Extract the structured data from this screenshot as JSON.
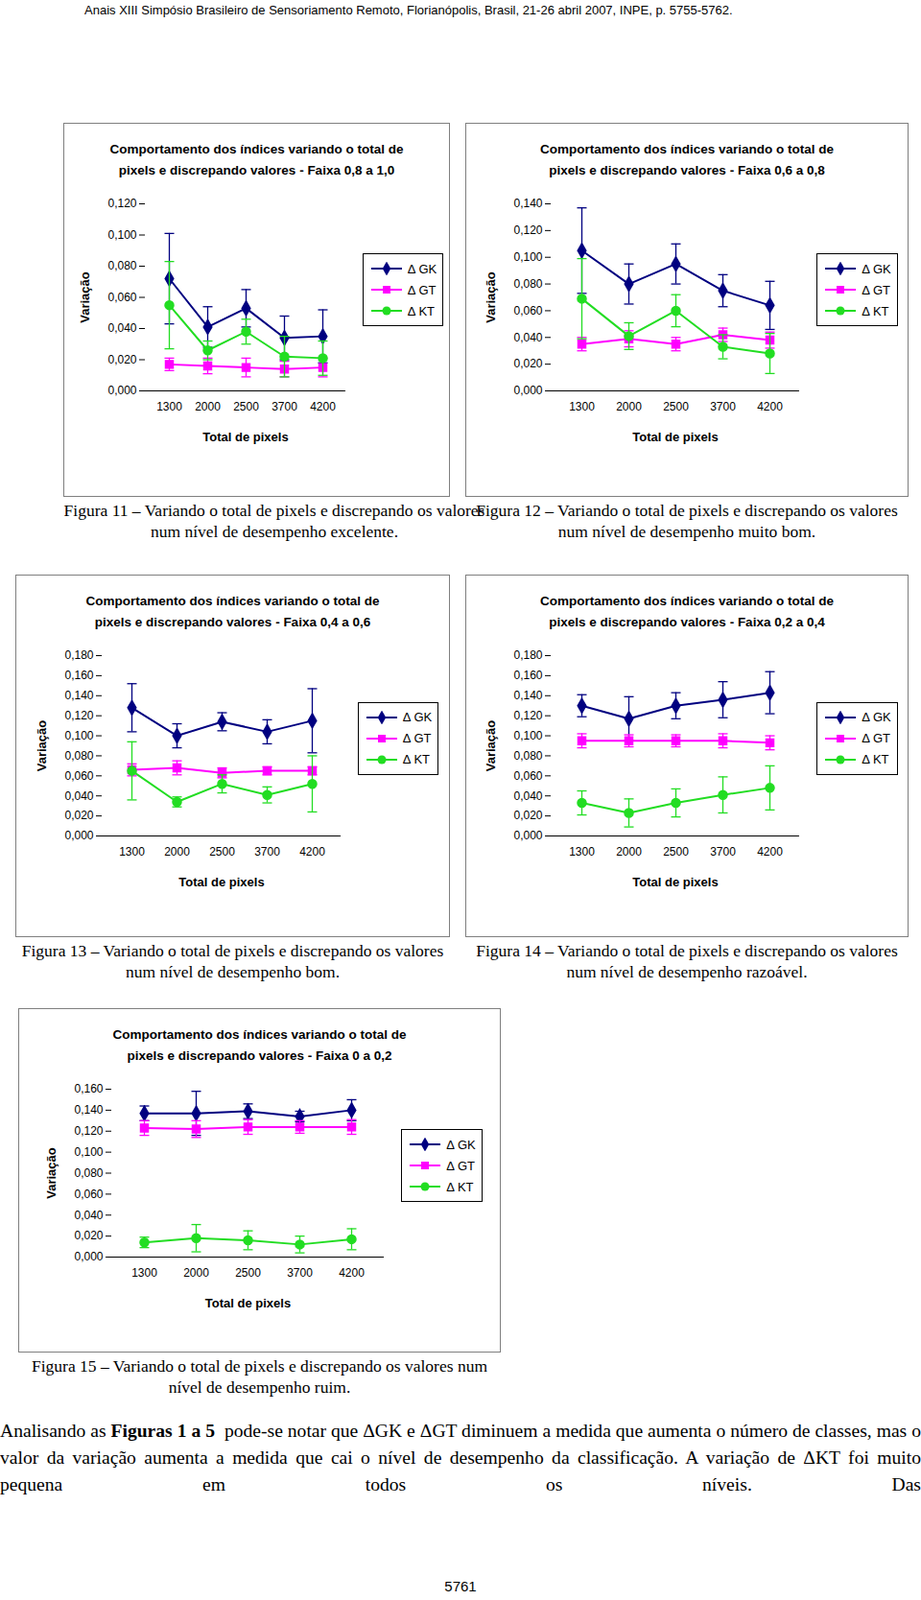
{
  "header": "Anais XIII Simpósio Brasileiro de Sensoriamento Remoto, Florianópolis, Brasil, 21-26 abril 2007, INPE, p. 5755-5762.",
  "chart_data": [
    {
      "type": "line",
      "title": "Comportamento dos índices variando o total de pixels e discrepando valores - Faixa 0,8 a 1,0",
      "caption": "Figura 11 – Variando o total de pixels e discrepando os valores num nível de desempenho excelente.",
      "x_label": "Total de pixels",
      "y_label": "Variação",
      "categories": [
        "1300",
        "2000",
        "2500",
        "3700",
        "4200"
      ],
      "ylim": [
        0,
        0.12
      ],
      "yticks": [
        {
          "value": 0,
          "label": "0,000"
        },
        {
          "value": 0.02,
          "label": "0,020"
        },
        {
          "value": 0.04,
          "label": "0,040"
        },
        {
          "value": 0.06,
          "label": "0,060"
        },
        {
          "value": 0.08,
          "label": "0,080"
        },
        {
          "value": 0.1,
          "label": "0,100"
        },
        {
          "value": 0.12,
          "label": "0,120"
        }
      ],
      "legend": "right",
      "series": [
        {
          "name": "Δ GK",
          "color": "#000080",
          "marker": "diamond",
          "values": [
            0.072,
            0.041,
            0.053,
            0.034,
            0.035
          ],
          "errors": [
            0.029,
            0.013,
            0.012,
            0.014,
            0.017
          ]
        },
        {
          "name": "Δ GT",
          "color": "#ff00ff",
          "marker": "square",
          "values": [
            0.017,
            0.016,
            0.015,
            0.014,
            0.015
          ],
          "errors": [
            0.004,
            0.005,
            0.006,
            0.005,
            0.006
          ]
        },
        {
          "name": "Δ KT",
          "color": "#22dd22",
          "marker": "circle",
          "values": [
            0.055,
            0.026,
            0.038,
            0.022,
            0.021
          ],
          "errors": [
            0.028,
            0.006,
            0.008,
            0.013,
            0.011
          ]
        }
      ]
    },
    {
      "type": "line",
      "title": "Comportamento dos índices variando o total de pixels e discrepando valores - Faixa 0,6 a 0,8",
      "caption": "Figura 12 – Variando o total de pixels e discrepando os valores num nível de desempenho muito bom.",
      "x_label": "Total de pixels",
      "y_label": "Variação",
      "categories": [
        "1300",
        "2000",
        "2500",
        "3700",
        "4200"
      ],
      "ylim": [
        0,
        0.14
      ],
      "yticks": [
        {
          "value": 0,
          "label": "0,000"
        },
        {
          "value": 0.02,
          "label": "0,020"
        },
        {
          "value": 0.04,
          "label": "0,040"
        },
        {
          "value": 0.06,
          "label": "0,060"
        },
        {
          "value": 0.08,
          "label": "0,080"
        },
        {
          "value": 0.1,
          "label": "0,100"
        },
        {
          "value": 0.12,
          "label": "0,120"
        },
        {
          "value": 0.14,
          "label": "0,140"
        }
      ],
      "legend": "right",
      "series": [
        {
          "name": "Δ GK",
          "color": "#000080",
          "marker": "diamond",
          "values": [
            0.105,
            0.08,
            0.095,
            0.075,
            0.064
          ],
          "errors": [
            0.032,
            0.015,
            0.015,
            0.012,
            0.018
          ]
        },
        {
          "name": "Δ GT",
          "color": "#ff00ff",
          "marker": "square",
          "values": [
            0.035,
            0.039,
            0.035,
            0.042,
            0.038
          ],
          "errors": [
            0.005,
            0.006,
            0.005,
            0.005,
            0.006
          ]
        },
        {
          "name": "Δ KT",
          "color": "#22dd22",
          "marker": "circle",
          "values": [
            0.069,
            0.041,
            0.06,
            0.033,
            0.028
          ],
          "errors": [
            0.03,
            0.01,
            0.012,
            0.009,
            0.015
          ]
        }
      ]
    },
    {
      "type": "line",
      "title": "Comportamento dos índices variando o total de pixels e discrepando valores - Faixa 0,4 a 0,6",
      "caption": "Figura 13 – Variando o total de pixels e discrepando os valores num nível de desempenho bom.",
      "x_label": "Total de pixels",
      "y_label": "Variação",
      "categories": [
        "1300",
        "2000",
        "2500",
        "3700",
        "4200"
      ],
      "ylim": [
        0,
        0.18
      ],
      "yticks": [
        {
          "value": 0,
          "label": "0,000"
        },
        {
          "value": 0.02,
          "label": "0,020"
        },
        {
          "value": 0.04,
          "label": "0,040"
        },
        {
          "value": 0.06,
          "label": "0,060"
        },
        {
          "value": 0.08,
          "label": "0,080"
        },
        {
          "value": 0.1,
          "label": "0,100"
        },
        {
          "value": 0.12,
          "label": "0,120"
        },
        {
          "value": 0.14,
          "label": "0,140"
        },
        {
          "value": 0.16,
          "label": "0,160"
        },
        {
          "value": 0.18,
          "label": "0,180"
        }
      ],
      "legend": "right",
      "series": [
        {
          "name": "Δ GK",
          "color": "#000080",
          "marker": "diamond",
          "values": [
            0.128,
            0.1,
            0.114,
            0.104,
            0.115
          ],
          "errors": [
            0.024,
            0.012,
            0.009,
            0.012,
            0.032
          ]
        },
        {
          "name": "Δ GT",
          "color": "#ff00ff",
          "marker": "square",
          "values": [
            0.066,
            0.068,
            0.063,
            0.065,
            0.065
          ],
          "errors": [
            0.006,
            0.007,
            0.005,
            0.004,
            0.004
          ]
        },
        {
          "name": "Δ KT",
          "color": "#22dd22",
          "marker": "circle",
          "values": [
            0.065,
            0.034,
            0.052,
            0.041,
            0.052
          ],
          "errors": [
            0.029,
            0.005,
            0.009,
            0.008,
            0.028
          ]
        }
      ]
    },
    {
      "type": "line",
      "title": "Comportamento dos índices variando o total de pixels e discrepando valores - Faixa 0,2 a 0,4",
      "caption": "Figura 14 – Variando o total de pixels e discrepando os valores num nível de desempenho razoável.",
      "x_label": "Total de pixels",
      "y_label": "Variação",
      "categories": [
        "1300",
        "2000",
        "2500",
        "3700",
        "4200"
      ],
      "ylim": [
        0,
        0.18
      ],
      "yticks": [
        {
          "value": 0,
          "label": "0,000"
        },
        {
          "value": 0.02,
          "label": "0,020"
        },
        {
          "value": 0.04,
          "label": "0,040"
        },
        {
          "value": 0.06,
          "label": "0,060"
        },
        {
          "value": 0.08,
          "label": "0,080"
        },
        {
          "value": 0.1,
          "label": "0,100"
        },
        {
          "value": 0.12,
          "label": "0,120"
        },
        {
          "value": 0.14,
          "label": "0,140"
        },
        {
          "value": 0.16,
          "label": "0,160"
        },
        {
          "value": 0.18,
          "label": "0,180"
        }
      ],
      "legend": "right",
      "series": [
        {
          "name": "Δ GK",
          "color": "#000080",
          "marker": "diamond",
          "values": [
            0.13,
            0.117,
            0.13,
            0.136,
            0.143
          ],
          "errors": [
            0.011,
            0.022,
            0.013,
            0.018,
            0.021
          ]
        },
        {
          "name": "Δ GT",
          "color": "#ff00ff",
          "marker": "square",
          "values": [
            0.095,
            0.095,
            0.095,
            0.095,
            0.093
          ],
          "errors": [
            0.007,
            0.006,
            0.006,
            0.007,
            0.007
          ]
        },
        {
          "name": "Δ KT",
          "color": "#22dd22",
          "marker": "circle",
          "values": [
            0.033,
            0.023,
            0.033,
            0.041,
            0.048
          ],
          "errors": [
            0.012,
            0.014,
            0.014,
            0.018,
            0.022
          ]
        }
      ]
    },
    {
      "type": "line",
      "title": "Comportamento dos índices variando o total de pixels e discrepando valores - Faixa 0 a 0,2",
      "caption": "Figura 15 – Variando o total de pixels e discrepando os valores num nível de desempenho ruim.",
      "x_label": "Total de pixels",
      "y_label": "Variação",
      "categories": [
        "1300",
        "2000",
        "2500",
        "3700",
        "4200"
      ],
      "ylim": [
        0,
        0.16
      ],
      "yticks": [
        {
          "value": 0,
          "label": "0,000"
        },
        {
          "value": 0.02,
          "label": "0,020"
        },
        {
          "value": 0.04,
          "label": "0,040"
        },
        {
          "value": 0.06,
          "label": "0,060"
        },
        {
          "value": 0.08,
          "label": "0,080"
        },
        {
          "value": 0.1,
          "label": "0,100"
        },
        {
          "value": 0.12,
          "label": "0,120"
        },
        {
          "value": 0.14,
          "label": "0,140"
        },
        {
          "value": 0.16,
          "label": "0,160"
        }
      ],
      "legend": "right",
      "series": [
        {
          "name": "Δ GK",
          "color": "#000080",
          "marker": "diamond",
          "values": [
            0.137,
            0.137,
            0.139,
            0.134,
            0.14
          ],
          "errors": [
            0.007,
            0.021,
            0.007,
            0.005,
            0.01
          ]
        },
        {
          "name": "Δ GT",
          "color": "#ff00ff",
          "marker": "square",
          "values": [
            0.123,
            0.122,
            0.124,
            0.124,
            0.124
          ],
          "errors": [
            0.007,
            0.008,
            0.007,
            0.006,
            0.007
          ]
        },
        {
          "name": "Δ KT",
          "color": "#22dd22",
          "marker": "circle",
          "values": [
            0.014,
            0.018,
            0.016,
            0.012,
            0.017
          ],
          "errors": [
            0.005,
            0.013,
            0.009,
            0.008,
            0.01
          ]
        }
      ]
    }
  ],
  "body_text": [
    {
      "text": "Analisando as "
    },
    {
      "text": "Figuras 1 a 5",
      "bold": true
    },
    {
      "text": "  pode-se notar que ΔGK e ΔGT diminuem a medida que aumenta o número de classes, mas o valor da variação aumenta a medida que cai o nível de desempenho da classificação. A variação de ΔKT foi muito pequena em todos os níveis. Das"
    }
  ],
  "page_number": "5761"
}
